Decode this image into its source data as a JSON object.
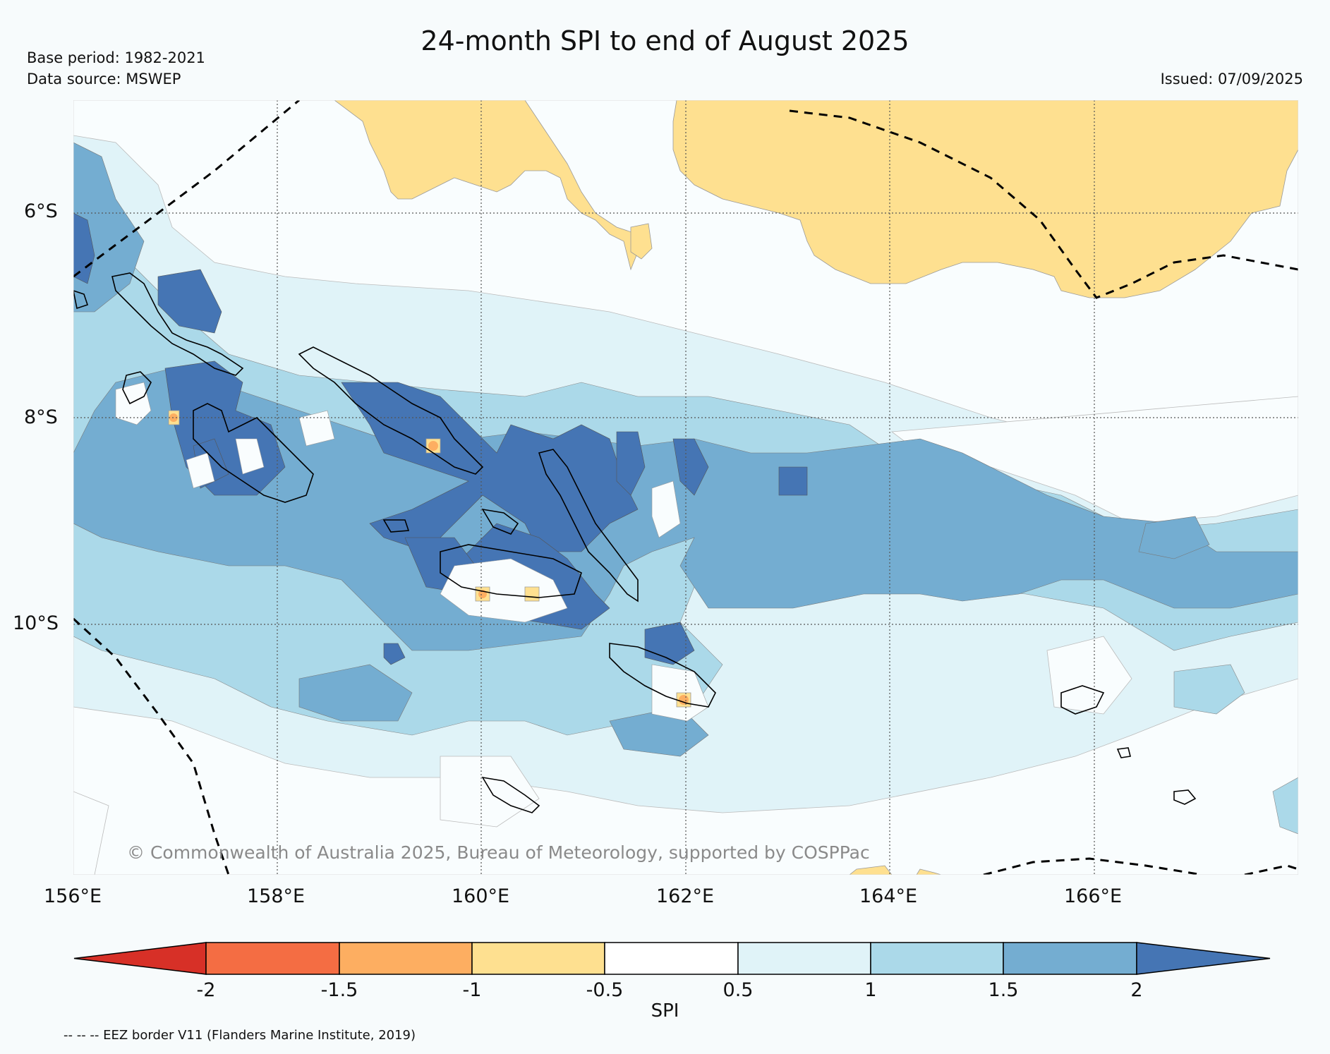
{
  "title": "24-month SPI to end of August 2025",
  "info": {
    "base_period": "Base period: 1982-2021",
    "data_source": "Data source: MSWEP",
    "issued": "Issued: 07/09/2025"
  },
  "copyright": "© Commonwealth of Australia 2025, Bureau of Meteorology, supported by COSPPac",
  "axes": {
    "lat_labels": [
      "6°S",
      "8°S",
      "10°S"
    ],
    "lon_labels": [
      "156°E",
      "158°E",
      "160°E",
      "162°E",
      "164°E",
      "166°E"
    ]
  },
  "colorbar": {
    "label": "SPI",
    "ticks": [
      "-2",
      "-1.5",
      "-1",
      "-0.5",
      "0.5",
      "1",
      "1.5",
      "2"
    ],
    "colors": {
      "below_min": "#d73027",
      "c1": "#f46d43",
      "c2": "#fdae61",
      "c3": "#fee090",
      "c4": "#ffffff",
      "c5": "#e0f3f8",
      "c6": "#abd9e9",
      "c7": "#74add1",
      "above_max": "#4575b4"
    }
  },
  "legend_note": "-- -- -- EEZ border V11 (Flanders Marine Institute, 2019)"
}
